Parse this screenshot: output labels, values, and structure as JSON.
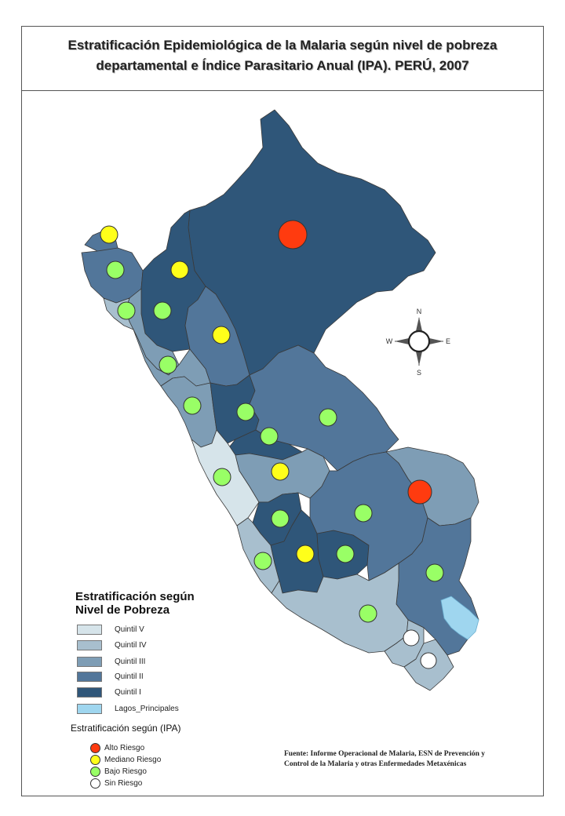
{
  "title": {
    "line1": "Estratificación Epidemiológica de la Malaria según nivel de pobreza",
    "line2": "departamental e Índice Parasitario Anual (IPA). PERÚ, 2007"
  },
  "compass": {
    "n": "N",
    "s": "S",
    "e": "E",
    "w": "W"
  },
  "poverty_legend": {
    "title_line1": "Estratificación según",
    "title_line2": "Nivel de Pobreza",
    "items": [
      {
        "label": "Quintil V",
        "color": "#d6e4ea"
      },
      {
        "label": "Quintil IV",
        "color": "#a8bfce"
      },
      {
        "label": "Quintil III",
        "color": "#7e9db5"
      },
      {
        "label": "Quintil II",
        "color": "#52769a"
      },
      {
        "label": "Quintil I",
        "color": "#2f5679"
      },
      {
        "label": "Lagos_Principales",
        "color": "#9fd6ef"
      }
    ]
  },
  "ipa_legend": {
    "title": "Estratificación según (IPA)",
    "items": [
      {
        "label": "Alto Riesgo",
        "color": "#ff3b0f"
      },
      {
        "label": "Mediano Riesgo",
        "color": "#ffff1a"
      },
      {
        "label": "Bajo Riesgo",
        "color": "#99ff66"
      },
      {
        "label": "Sin Riesgo",
        "color": "#ffffff"
      }
    ]
  },
  "source": {
    "line1": "Fuente: Informe Operacional de Malaria, ESN de Prevención y",
    "line2": "Control de la Malaria y otras Enfermedades Metaxénicas"
  }
}
